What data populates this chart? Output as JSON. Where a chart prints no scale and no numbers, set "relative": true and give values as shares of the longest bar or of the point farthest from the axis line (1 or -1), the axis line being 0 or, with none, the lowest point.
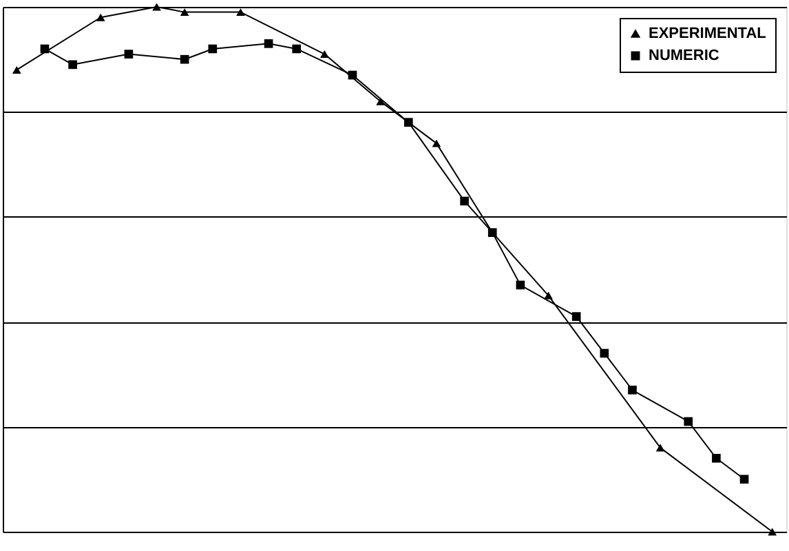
{
  "chart_data": {
    "type": "line",
    "relative": true,
    "grid": "y",
    "legend": "top right",
    "line_style": "solid",
    "categories": [
      null,
      null,
      null,
      null,
      null,
      null,
      null,
      null,
      null,
      null,
      null,
      null,
      null,
      null,
      null,
      null,
      null,
      null,
      null,
      null,
      null,
      null,
      null,
      null,
      null,
      null,
      null,
      null
    ],
    "series": [
      {
        "name": "EXPERIMENTAL",
        "color": "#000000",
        "marker": "triangle",
        "values": [
          0.88,
          null,
          null,
          0.98,
          null,
          1.0,
          0.99,
          null,
          0.99,
          null,
          null,
          0.91,
          null,
          0.82,
          null,
          0.74,
          null,
          0.57,
          null,
          0.45,
          null,
          null,
          null,
          0.16,
          null,
          null,
          null,
          0
        ]
      },
      {
        "name": "NUMERIC",
        "color": "#000000",
        "marker": "square",
        "values": [
          null,
          0.92,
          0.89,
          null,
          0.91,
          null,
          0.9,
          0.92,
          null,
          0.93,
          0.92,
          null,
          0.87,
          null,
          0.78,
          null,
          0.63,
          0.57,
          0.47,
          null,
          0.41,
          0.34,
          0.27,
          null,
          0.21,
          0.14,
          0.1,
          null
        ]
      }
    ]
  }
}
